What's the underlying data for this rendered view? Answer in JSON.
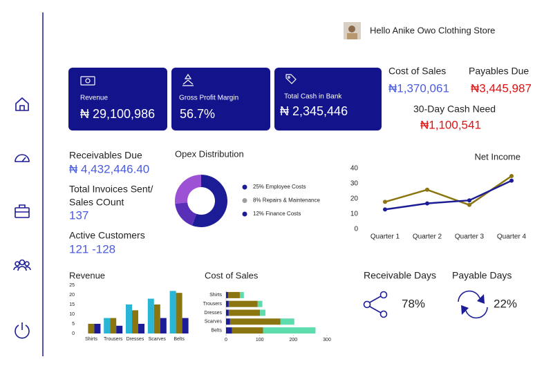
{
  "greeting": "Hello Anike Owo Clothing Store",
  "cards": [
    {
      "label": "Revenue",
      "value": "₦ 29,100,986"
    },
    {
      "label": "Gross Profit Margin",
      "value": "56.7%"
    },
    {
      "label": "Total Cash in Bank",
      "value": "₦ 2,345,446"
    }
  ],
  "cost_of_sales": {
    "label": "Cost of Sales",
    "value": "₦1,370,061"
  },
  "payables_due": {
    "label": "Payables Due",
    "value": "₦3,445,987"
  },
  "cash_need": {
    "label": "30-Day Cash Need",
    "value": "₦1,100,541"
  },
  "receivables_due": {
    "label": "Receivables Due",
    "value": "₦ 4,432,446.40"
  },
  "invoices": {
    "label_lines": [
      "Total Invoices Sent/",
      "Sales COunt"
    ],
    "value": "137"
  },
  "customers": {
    "label": "Active Customers",
    "value": "121 -128"
  },
  "days": [
    {
      "label": "Receivable Days",
      "value": "78%"
    },
    {
      "label": "Payable Days",
      "value": "22%"
    }
  ],
  "chart_data": [
    {
      "type": "pie",
      "title": "Opex Distribution",
      "categories": [
        "25% Employee Costs",
        "8% Repairs & Maintenance",
        "12% Finance Costs"
      ],
      "values": [
        25,
        8,
        12
      ],
      "colors": [
        "#1c1c96",
        "#5a2fb8",
        "#9d52d6"
      ],
      "legend_colors": [
        "#1c1c96",
        "#9e9e9e",
        "#1c1c96"
      ],
      "donut": true
    },
    {
      "type": "line",
      "title": "Net Income",
      "categories": [
        "Quarter 1",
        "Quarter 2",
        "Quarter 3",
        "Quarter 4"
      ],
      "series": [
        {
          "color": "#8b7510",
          "values": [
            18,
            26,
            16,
            35
          ]
        },
        {
          "color": "#1c1c96",
          "values": [
            13,
            17,
            19,
            32
          ]
        }
      ],
      "ylim": [
        0,
        40
      ],
      "yticks": [
        0,
        10,
        20,
        30,
        40
      ]
    },
    {
      "type": "bar",
      "title": "Revenue",
      "categories": [
        "Shirts",
        "Trousers",
        "Dresses",
        "Scarves",
        "Belts"
      ],
      "series": [
        {
          "color": "#29b6d6",
          "values": [
            0,
            8,
            15,
            18,
            22
          ]
        },
        {
          "color": "#8b7510",
          "values": [
            5,
            8,
            12,
            15,
            21
          ]
        },
        {
          "color": "#1c1c96",
          "values": [
            5,
            4,
            5,
            8,
            8
          ]
        }
      ],
      "ylim": [
        0,
        25
      ],
      "yticks": [
        0,
        5,
        10,
        15,
        20,
        25
      ]
    },
    {
      "type": "hbar_stacked",
      "title": "Cost of Sales",
      "categories": [
        "Shirts",
        "Trousers",
        "Dresses",
        "Scarves",
        "Belts"
      ],
      "series": [
        {
          "color": "#1c1c96",
          "values": [
            6,
            8,
            8,
            12,
            18
          ]
        },
        {
          "color": "#8b7510",
          "values": [
            35,
            86,
            93,
            150,
            92
          ]
        },
        {
          "color": "#5fdcae",
          "values": [
            12,
            14,
            16,
            41,
            156
          ]
        }
      ],
      "xlim": [
        0,
        300
      ],
      "xticks": [
        0,
        100,
        200,
        300
      ]
    }
  ]
}
